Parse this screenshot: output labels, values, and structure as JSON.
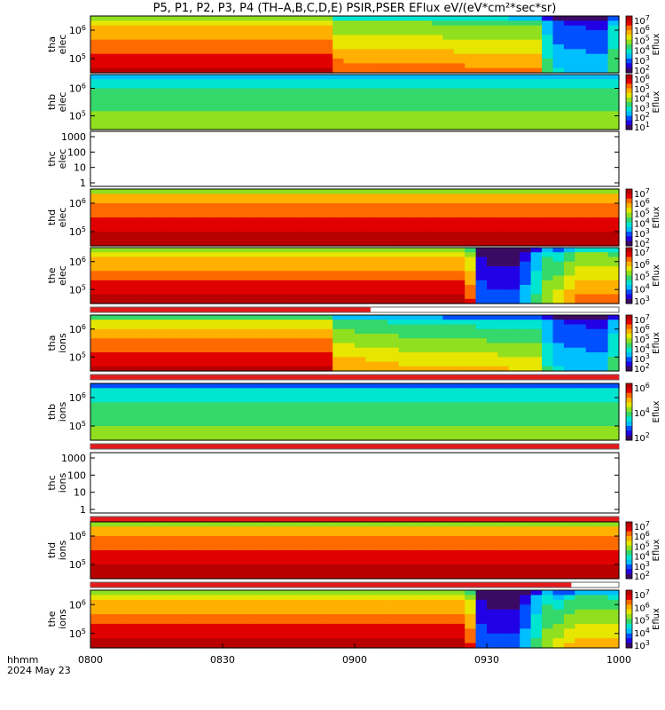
{
  "title": "P5, P1, P2, P3, P4 (TH–A,B,C,D,E) PSIR,PSER EFlux eV/(eV*cm²*sec*sr)",
  "colors": {
    "background": "#ffffff",
    "gap_bar": "#e41a1c",
    "spectrogram_scale": [
      "#3b0a63",
      "#2200e6",
      "#0050ff",
      "#00bfff",
      "#00e5d0",
      "#35d86a",
      "#90e020",
      "#e6e600",
      "#ffb000",
      "#ff6a00",
      "#e10000",
      "#b80000"
    ]
  },
  "footer": {
    "label_line1": "hhmm",
    "label_line2": "2024 May 23"
  },
  "chart_data": {
    "type": "heatmap",
    "x_axis": {
      "range": [
        "0800",
        "1000"
      ],
      "tick_labels": [
        "0800",
        "0830",
        "0900",
        "0930",
        "1000"
      ],
      "unit": "hhmm",
      "date": "2024 May 23"
    },
    "panels": [
      {
        "label": [
          "tha",
          "elec"
        ],
        "y_ticks": [
          "10^6",
          "10^5"
        ],
        "colorbar_ticks": [
          "10^7",
          "10^6",
          "10^5",
          "10^4",
          "10^3",
          "10^2"
        ],
        "colorbar_label": "Eflux",
        "has_data": true,
        "profile": [
          [
            0,
            10.2
          ],
          [
            0.465,
            10.2
          ],
          [
            0.466,
            8.6
          ],
          [
            0.62,
            8.4
          ],
          [
            0.85,
            8.0
          ],
          [
            0.87,
            3.0
          ],
          [
            0.98,
            2.5
          ],
          [
            0.99,
            5.0
          ],
          [
            1,
            5.0
          ]
        ]
      },
      {
        "label": [
          "thb",
          "elec"
        ],
        "y_ticks": [
          "10^6",
          "10^5"
        ],
        "colorbar_ticks": [
          "10^6",
          "10^5",
          "10^4",
          "10^3",
          "10^2",
          "10^1"
        ],
        "colorbar_label": "Eflux",
        "has_data": true,
        "profile": [
          [
            0,
            5.5
          ],
          [
            1,
            5.5
          ]
        ]
      },
      {
        "label": [
          "thc",
          "elec"
        ],
        "y_ticks": [
          "1000",
          "100",
          "10",
          "1"
        ],
        "has_data": false
      },
      {
        "label": [
          "thd",
          "elec"
        ],
        "y_ticks": [
          "10^6",
          "10^5"
        ],
        "colorbar_ticks": [
          "10^7",
          "10^6",
          "10^5",
          "10^4",
          "10^3",
          "10^2"
        ],
        "colorbar_label": "Eflux",
        "has_data": true,
        "profile": [
          [
            0,
            10.8
          ],
          [
            1,
            10.8
          ]
        ]
      },
      {
        "label": [
          "the",
          "elec"
        ],
        "y_ticks": [
          "10^6",
          "10^5"
        ],
        "colorbar_ticks": [
          "10^7",
          "10^6",
          "10^5",
          "10^4",
          "10^3"
        ],
        "colorbar_label": "Eflux",
        "has_data": true,
        "gap_bar": [
          0,
          0.53
        ],
        "profile": [
          [
            0,
            10.3
          ],
          [
            0.7,
            10.3
          ],
          [
            0.73,
            8.5
          ],
          [
            0.74,
            1.5
          ],
          [
            0.8,
            1.3
          ],
          [
            0.83,
            3.0
          ],
          [
            0.86,
            5.5
          ],
          [
            0.92,
            8.5
          ],
          [
            1,
            8.3
          ]
        ]
      },
      {
        "label": [
          "tha",
          "ions"
        ],
        "y_ticks": [
          "10^6",
          "10^5"
        ],
        "colorbar_ticks": [
          "10^7",
          "10^6",
          "10^5",
          "10^4",
          "10^3",
          "10^2"
        ],
        "colorbar_label": "Eflux",
        "has_data": true,
        "gap_bar": [
          0,
          1
        ],
        "profile": [
          [
            0,
            10.0
          ],
          [
            0.465,
            10.0
          ],
          [
            0.466,
            7.8
          ],
          [
            0.6,
            7.2
          ],
          [
            0.85,
            6.8
          ],
          [
            0.87,
            3.0
          ],
          [
            0.98,
            2.5
          ],
          [
            0.99,
            4.5
          ],
          [
            1,
            4.5
          ]
        ]
      },
      {
        "label": [
          "thb",
          "ions"
        ],
        "y_ticks": [
          "10^6",
          "10^5"
        ],
        "colorbar_ticks": [
          "10^6",
          "10^4",
          "10^2"
        ],
        "colorbar_label": "Eflux",
        "has_data": true,
        "gap_bar": [
          0,
          1
        ],
        "profile": [
          [
            0,
            5.4
          ],
          [
            1,
            5.4
          ]
        ]
      },
      {
        "label": [
          "thc",
          "ions"
        ],
        "y_ticks": [
          "1000",
          "100",
          "10",
          "1"
        ],
        "has_data": false,
        "gap_bar": [
          0,
          1
        ]
      },
      {
        "label": [
          "thd",
          "ions"
        ],
        "y_ticks": [
          "10^6",
          "10^5"
        ],
        "colorbar_ticks": [
          "10^7",
          "10^6",
          "10^5",
          "10^4",
          "10^3",
          "10^2"
        ],
        "colorbar_label": "Eflux",
        "has_data": true,
        "gap_bar": [
          0,
          0.91
        ],
        "profile": [
          [
            0,
            10.8
          ],
          [
            1,
            10.8
          ]
        ]
      },
      {
        "label": [
          "the",
          "ions"
        ],
        "y_ticks": [
          "10^6",
          "10^5"
        ],
        "colorbar_ticks": [
          "10^7",
          "10^6",
          "10^5",
          "10^4",
          "10^3"
        ],
        "colorbar_label": "Eflux",
        "has_data": true,
        "profile": [
          [
            0,
            10.3
          ],
          [
            0.7,
            10.3
          ],
          [
            0.73,
            8.5
          ],
          [
            0.74,
            1.5
          ],
          [
            0.8,
            1.3
          ],
          [
            0.83,
            3.0
          ],
          [
            0.86,
            5.5
          ],
          [
            0.92,
            7.5
          ],
          [
            1,
            7.3
          ]
        ]
      }
    ]
  }
}
